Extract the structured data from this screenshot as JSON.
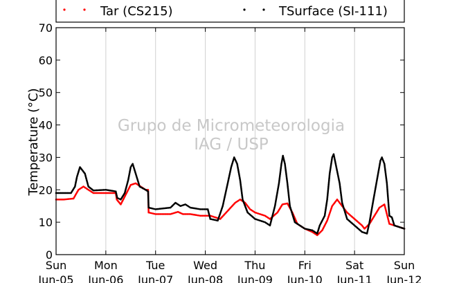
{
  "watermark": {
    "line1": "Grupo de Micrometeorologia",
    "line2": "IAG / USP"
  },
  "legend": [
    {
      "label": "Tar (CS215)",
      "color": "#ff0000"
    },
    {
      "label": "TSurface (SI-111)",
      "color": "#000000"
    }
  ],
  "chart_data": {
    "type": "scatter",
    "ylabel": "Temperature (°C)",
    "xlabel": "",
    "title": "",
    "ylim": [
      0,
      70
    ],
    "yticks": [
      0,
      10,
      20,
      30,
      40,
      50,
      60,
      70
    ],
    "xlim_days": [
      0,
      7
    ],
    "xticks": [
      {
        "day": "Sun",
        "date": "Jun-05"
      },
      {
        "day": "Mon",
        "date": "Jun-06"
      },
      {
        "day": "Tue",
        "date": "Jun-07"
      },
      {
        "day": "Wed",
        "date": "Jun-08"
      },
      {
        "day": "Thu",
        "date": "Jun-09"
      },
      {
        "day": "Fri",
        "date": "Jun-10"
      },
      {
        "day": "Sat",
        "date": "Jun-11"
      },
      {
        "day": "Sun",
        "date": "Jun-12"
      }
    ],
    "grid": "vertical",
    "legend_position": "top",
    "series": [
      {
        "name": "Tar (CS215)",
        "color": "#ff0000",
        "points": [
          [
            0.0,
            17
          ],
          [
            0.15,
            17
          ],
          [
            0.35,
            17.3
          ],
          [
            0.45,
            20
          ],
          [
            0.55,
            21
          ],
          [
            0.65,
            20
          ],
          [
            0.75,
            19
          ],
          [
            1.0,
            19
          ],
          [
            1.2,
            19
          ],
          [
            1.22,
            17
          ],
          [
            1.3,
            15.5
          ],
          [
            1.4,
            18.5
          ],
          [
            1.5,
            21.5
          ],
          [
            1.6,
            22
          ],
          [
            1.7,
            21
          ],
          [
            1.8,
            20
          ],
          [
            1.85,
            20
          ],
          [
            1.86,
            13
          ],
          [
            2.0,
            12.5
          ],
          [
            2.3,
            12.5
          ],
          [
            2.45,
            13.2
          ],
          [
            2.55,
            12.5
          ],
          [
            2.7,
            12.5
          ],
          [
            2.9,
            12
          ],
          [
            3.1,
            12
          ],
          [
            3.2,
            11.5
          ],
          [
            3.3,
            11
          ],
          [
            3.45,
            13.5
          ],
          [
            3.6,
            16
          ],
          [
            3.7,
            17
          ],
          [
            3.8,
            16
          ],
          [
            3.9,
            14
          ],
          [
            4.0,
            13
          ],
          [
            4.2,
            12
          ],
          [
            4.3,
            11
          ],
          [
            4.45,
            13
          ],
          [
            4.55,
            15.5
          ],
          [
            4.65,
            15.8
          ],
          [
            4.75,
            13
          ],
          [
            4.85,
            9.5
          ],
          [
            5.0,
            8
          ],
          [
            5.15,
            7
          ],
          [
            5.25,
            6
          ],
          [
            5.35,
            7.5
          ],
          [
            5.45,
            10.5
          ],
          [
            5.55,
            15
          ],
          [
            5.65,
            17
          ],
          [
            5.75,
            15
          ],
          [
            5.85,
            13
          ],
          [
            6.0,
            11
          ],
          [
            6.15,
            9
          ],
          [
            6.2,
            8
          ],
          [
            6.3,
            9.5
          ],
          [
            6.4,
            12
          ],
          [
            6.5,
            14.5
          ],
          [
            6.6,
            15.5
          ],
          [
            6.7,
            9.5
          ],
          [
            6.8,
            9
          ],
          [
            6.9,
            8.5
          ],
          [
            7.0,
            8
          ]
        ]
      },
      {
        "name": "TSurface (SI-111)",
        "color": "#000000",
        "points": [
          [
            0.0,
            19
          ],
          [
            0.3,
            19
          ],
          [
            0.38,
            21
          ],
          [
            0.42,
            24
          ],
          [
            0.48,
            27
          ],
          [
            0.53,
            26
          ],
          [
            0.58,
            25
          ],
          [
            0.65,
            21
          ],
          [
            0.75,
            19.8
          ],
          [
            1.0,
            20
          ],
          [
            1.2,
            19.5
          ],
          [
            1.23,
            17.5
          ],
          [
            1.3,
            17
          ],
          [
            1.38,
            19
          ],
          [
            1.45,
            23
          ],
          [
            1.5,
            27
          ],
          [
            1.54,
            28
          ],
          [
            1.58,
            26
          ],
          [
            1.62,
            24
          ],
          [
            1.68,
            21
          ],
          [
            1.8,
            20
          ],
          [
            1.85,
            19.5
          ],
          [
            1.86,
            14.5
          ],
          [
            2.0,
            14
          ],
          [
            2.3,
            14.5
          ],
          [
            2.4,
            16
          ],
          [
            2.5,
            15
          ],
          [
            2.6,
            15.5
          ],
          [
            2.7,
            14.5
          ],
          [
            2.9,
            14
          ],
          [
            3.05,
            14
          ],
          [
            3.1,
            11
          ],
          [
            3.25,
            10.5
          ],
          [
            3.35,
            15
          ],
          [
            3.45,
            22
          ],
          [
            3.52,
            27
          ],
          [
            3.58,
            30
          ],
          [
            3.64,
            28
          ],
          [
            3.7,
            23
          ],
          [
            3.75,
            17
          ],
          [
            3.85,
            13
          ],
          [
            4.0,
            11
          ],
          [
            4.2,
            10
          ],
          [
            4.3,
            9
          ],
          [
            4.4,
            15
          ],
          [
            4.48,
            22
          ],
          [
            4.53,
            28
          ],
          [
            4.56,
            30.5
          ],
          [
            4.6,
            28
          ],
          [
            4.65,
            22
          ],
          [
            4.7,
            15
          ],
          [
            4.8,
            10
          ],
          [
            5.0,
            8
          ],
          [
            5.15,
            7.5
          ],
          [
            5.25,
            6.5
          ],
          [
            5.3,
            9
          ],
          [
            5.4,
            12
          ],
          [
            5.45,
            17
          ],
          [
            5.5,
            25
          ],
          [
            5.55,
            30
          ],
          [
            5.58,
            31
          ],
          [
            5.62,
            28
          ],
          [
            5.7,
            22
          ],
          [
            5.75,
            16
          ],
          [
            5.85,
            11
          ],
          [
            6.0,
            9
          ],
          [
            6.15,
            7
          ],
          [
            6.25,
            6.5
          ],
          [
            6.3,
            10
          ],
          [
            6.38,
            17
          ],
          [
            6.45,
            23
          ],
          [
            6.52,
            29
          ],
          [
            6.55,
            30
          ],
          [
            6.6,
            28
          ],
          [
            6.65,
            22
          ],
          [
            6.7,
            12
          ],
          [
            6.75,
            11.5
          ],
          [
            6.8,
            9
          ],
          [
            6.9,
            8.5
          ],
          [
            7.0,
            8
          ]
        ]
      }
    ]
  }
}
